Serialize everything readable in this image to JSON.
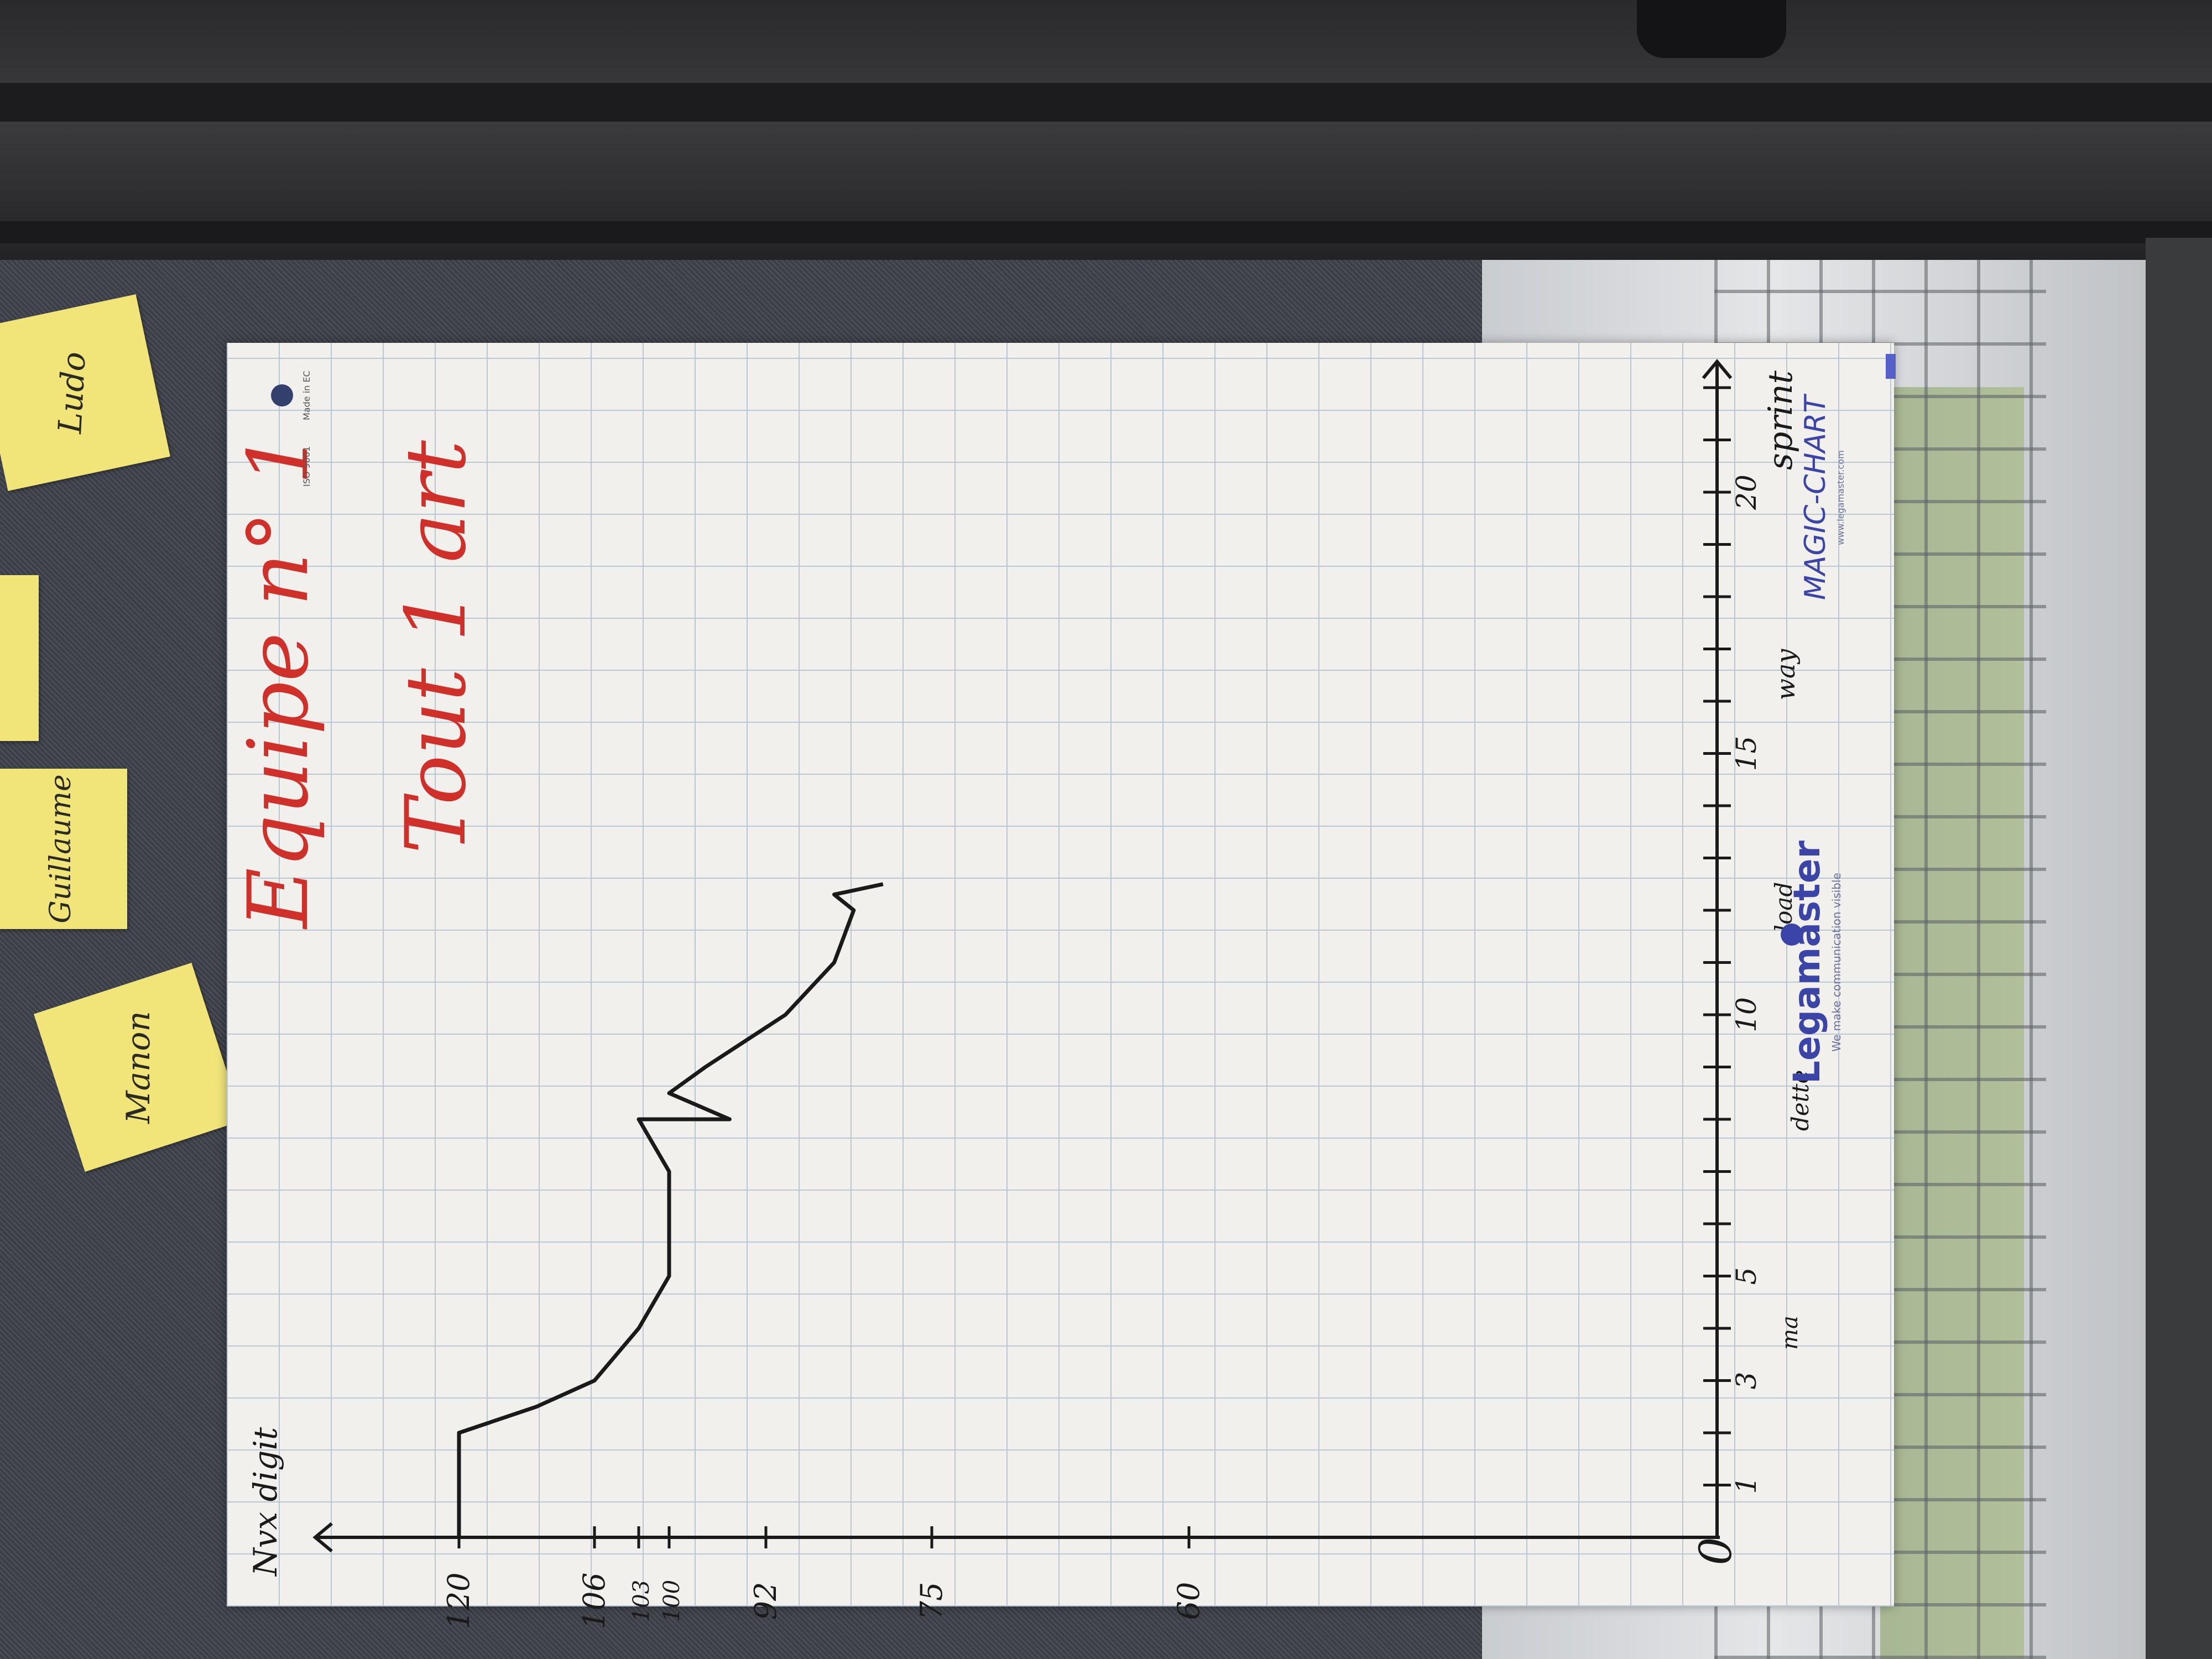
{
  "title": {
    "line1": "Equipe n° 1",
    "line2": "Tout 1 art"
  },
  "y_axis": {
    "label": "Nvx digit",
    "ticks": [
      "120",
      "106",
      "103",
      "100",
      "92",
      "75",
      "60"
    ]
  },
  "x_axis": {
    "label": "sprint",
    "ticks": [
      "0",
      "1",
      "3",
      "5",
      "10",
      "15",
      "20"
    ],
    "annotations": [
      "ma",
      "dette",
      "load",
      "way"
    ]
  },
  "sticky_notes": [
    "Ludo",
    "Guillaume",
    "Manon"
  ],
  "brand": {
    "legamaster": "Legamaster",
    "tagline": "We make communication visible",
    "product": "MAGIC-CHART",
    "website": "www.legamaster.com",
    "made_in": "Made in EC",
    "iso": "ISO 9001"
  },
  "colors": {
    "paper": "#f2f0ec",
    "grid": "#b9c7d3",
    "ink_red": "#d0302a",
    "ink_black": "#1a1a1a",
    "sticky": "#f1e57a",
    "brand_blue": "#3b45a8"
  },
  "chart_data": {
    "type": "line",
    "title": "Equipe n° 1 Tout 1 art",
    "xlabel": "sprint",
    "ylabel": "Nvx digit",
    "x": [
      0,
      1,
      2,
      2.5,
      3,
      4,
      5,
      6,
      7,
      8,
      8,
      8.5,
      9,
      10,
      11,
      12,
      12.3,
      12.5
    ],
    "y": [
      120,
      120,
      120,
      112,
      106,
      103,
      100,
      100,
      100,
      103,
      95,
      100,
      97,
      90,
      85,
      83,
      85,
      80
    ],
    "ylim": [
      55,
      125
    ],
    "xlim": [
      0,
      20
    ],
    "grid": true
  }
}
